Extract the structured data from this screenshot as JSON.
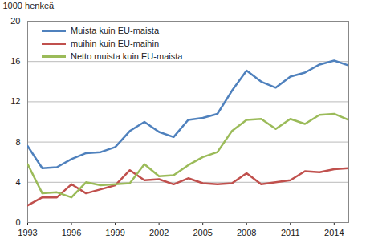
{
  "chart_data": {
    "type": "line",
    "title": "",
    "y_label": "1000 henkeä",
    "x": [
      1993,
      1994,
      1995,
      1996,
      1997,
      1998,
      1999,
      2000,
      2001,
      2002,
      2003,
      2004,
      2005,
      2006,
      2007,
      2008,
      2009,
      2010,
      2011,
      2012,
      2013,
      2014,
      2015
    ],
    "series": [
      {
        "name": "Muista kuin EU-maista",
        "color": "#4f81bd",
        "values": [
          7.6,
          5.4,
          5.5,
          6.3,
          6.9,
          7.0,
          7.5,
          9.1,
          10.0,
          9.0,
          8.5,
          10.2,
          10.4,
          10.8,
          13.1,
          15.1,
          14.0,
          13.4,
          14.5,
          14.9,
          15.7,
          16.1,
          15.6
        ]
      },
      {
        "name": "muihin kuin EU-maihin",
        "color": "#c0504d",
        "values": [
          1.7,
          2.5,
          2.5,
          3.8,
          2.9,
          3.3,
          3.7,
          5.2,
          4.2,
          4.3,
          3.8,
          4.4,
          3.9,
          3.8,
          3.9,
          4.9,
          3.8,
          4.0,
          4.2,
          5.1,
          5.0,
          5.3,
          5.4
        ]
      },
      {
        "name": "Netto muista kuin EU-maista",
        "color": "#9bbb59",
        "values": [
          5.8,
          2.9,
          3.0,
          2.5,
          4.0,
          3.7,
          3.8,
          3.9,
          5.8,
          4.6,
          4.7,
          5.7,
          6.5,
          7.0,
          9.1,
          10.2,
          10.3,
          9.3,
          10.3,
          9.8,
          10.7,
          10.8,
          10.2
        ]
      }
    ],
    "xlim": [
      1993,
      2015
    ],
    "xticks": [
      1993,
      1996,
      1999,
      2002,
      2005,
      2008,
      2011,
      2014
    ],
    "ylim": [
      0,
      20
    ],
    "yticks": [
      0,
      4,
      8,
      12,
      16,
      20
    ],
    "grid": true,
    "legend": "top-left"
  }
}
